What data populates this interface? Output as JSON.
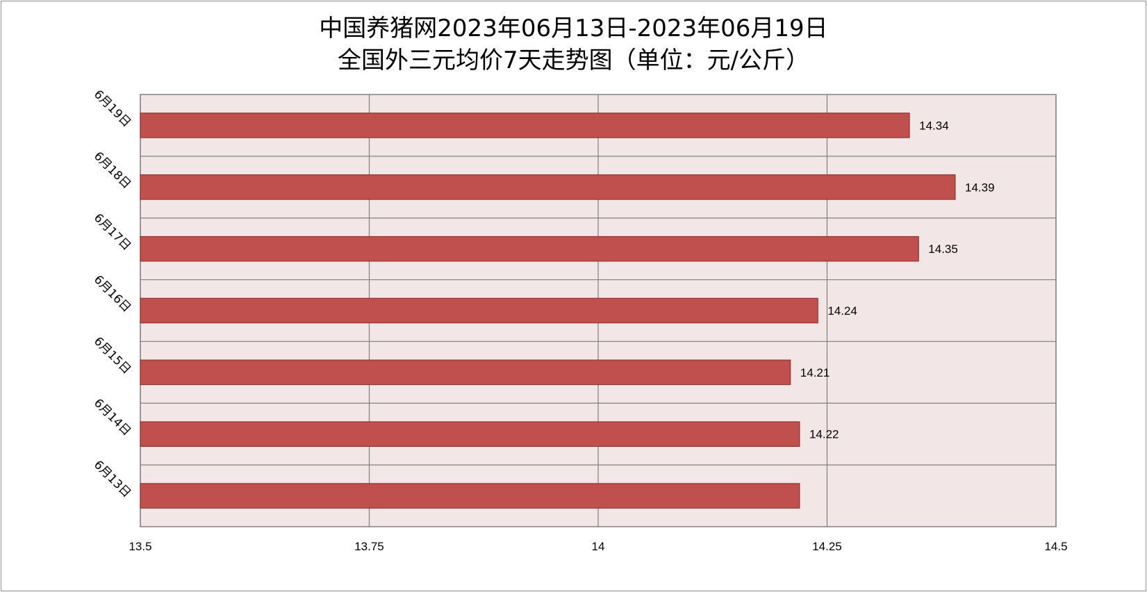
{
  "chart_data": {
    "type": "bar",
    "orientation": "horizontal",
    "title_line1": "中国养猪网2023年06月13日-2023年06月19日",
    "title_line2": "全国外三元均价7天走势图（单位：元/公斤）",
    "categories": [
      "6月19日",
      "6月18日",
      "6月17日",
      "6月16日",
      "6月15日",
      "6月14日",
      "6月13日"
    ],
    "values": [
      14.34,
      14.39,
      14.35,
      14.24,
      14.21,
      14.22,
      14.22
    ],
    "data_labels": [
      "14.34",
      "14.39",
      "14.35",
      "14.24",
      "14.21",
      "14.22",
      ""
    ],
    "xlim": [
      13.5,
      14.5
    ],
    "x_ticks": [
      "13.5",
      "13.75",
      "14",
      "14.25",
      "14.5"
    ],
    "grid": true,
    "legend": "none",
    "colors": {
      "bar_fill": "#c0504d",
      "bar_stroke": "#8b2a28",
      "plot_background": "#f2e6e6",
      "gridline": "#808080"
    }
  }
}
